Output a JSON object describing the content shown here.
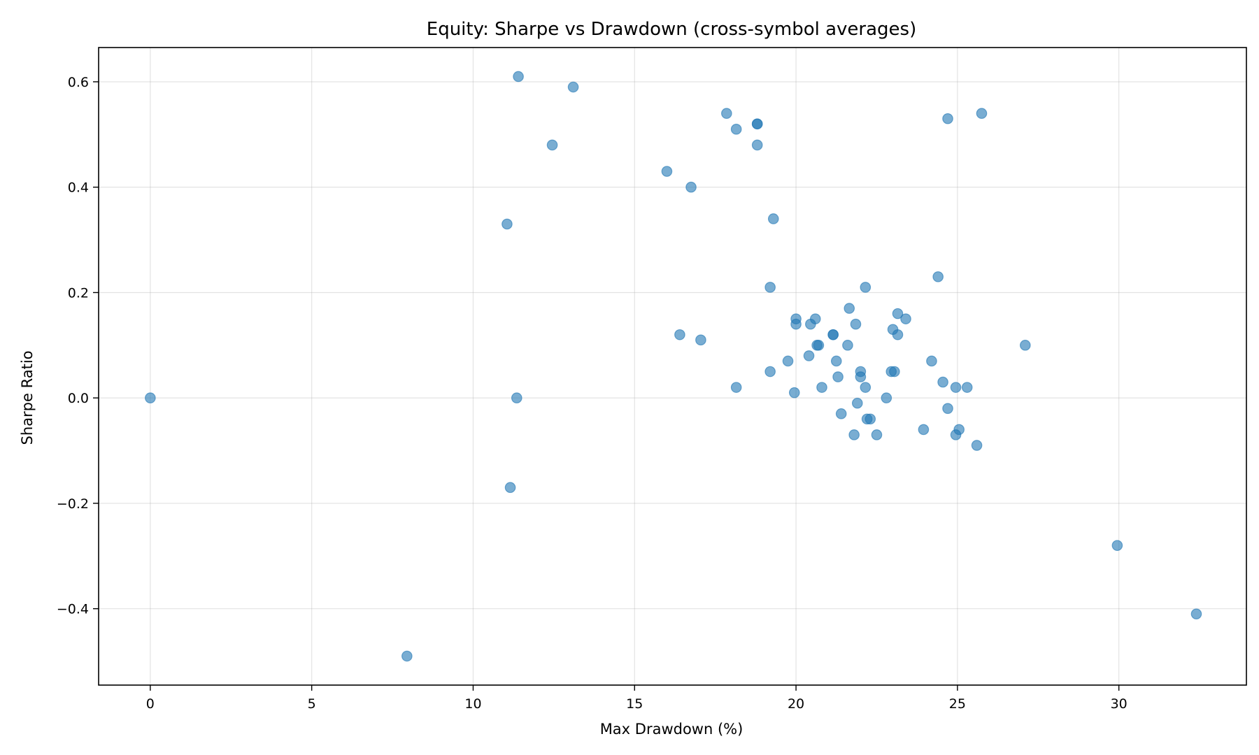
{
  "chart_data": {
    "type": "scatter",
    "title": "Equity: Sharpe vs Drawdown (cross-symbol averages)",
    "xlabel": "Max Drawdown (%)",
    "ylabel": "Sharpe Ratio",
    "xlim": [
      -1.6,
      33.95
    ],
    "ylim": [
      -0.545,
      0.665
    ],
    "xticks": [
      0,
      5,
      10,
      15,
      20,
      25,
      30
    ],
    "yticks": [
      -0.4,
      -0.2,
      0.0,
      0.2,
      0.4,
      0.6
    ],
    "xtick_labels": [
      "0",
      "5",
      "10",
      "15",
      "20",
      "25",
      "30"
    ],
    "ytick_labels": [
      "−0.4",
      "−0.2",
      "0.0",
      "0.2",
      "0.4",
      "0.6"
    ],
    "grid": true,
    "point_color": "#1f77b4",
    "points": [
      {
        "x": 0.0,
        "y": 0.0
      },
      {
        "x": 7.95,
        "y": -0.49
      },
      {
        "x": 11.05,
        "y": 0.33
      },
      {
        "x": 11.15,
        "y": -0.17
      },
      {
        "x": 11.35,
        "y": 0.0
      },
      {
        "x": 11.4,
        "y": 0.61
      },
      {
        "x": 12.45,
        "y": 0.48
      },
      {
        "x": 13.1,
        "y": 0.59
      },
      {
        "x": 16.0,
        "y": 0.43
      },
      {
        "x": 16.4,
        "y": 0.12
      },
      {
        "x": 16.75,
        "y": 0.4
      },
      {
        "x": 17.05,
        "y": 0.11
      },
      {
        "x": 17.85,
        "y": 0.54
      },
      {
        "x": 18.15,
        "y": 0.51
      },
      {
        "x": 18.15,
        "y": 0.02
      },
      {
        "x": 18.8,
        "y": 0.52
      },
      {
        "x": 18.8,
        "y": 0.52
      },
      {
        "x": 18.8,
        "y": 0.48
      },
      {
        "x": 19.2,
        "y": 0.21
      },
      {
        "x": 19.2,
        "y": 0.05
      },
      {
        "x": 19.3,
        "y": 0.34
      },
      {
        "x": 19.75,
        "y": 0.07
      },
      {
        "x": 19.95,
        "y": 0.01
      },
      {
        "x": 20.0,
        "y": 0.15
      },
      {
        "x": 20.0,
        "y": 0.14
      },
      {
        "x": 20.4,
        "y": 0.08
      },
      {
        "x": 20.45,
        "y": 0.14
      },
      {
        "x": 20.6,
        "y": 0.15
      },
      {
        "x": 20.65,
        "y": 0.1
      },
      {
        "x": 20.7,
        "y": 0.1
      },
      {
        "x": 20.8,
        "y": 0.02
      },
      {
        "x": 21.15,
        "y": 0.12
      },
      {
        "x": 21.15,
        "y": 0.12
      },
      {
        "x": 21.25,
        "y": 0.07
      },
      {
        "x": 21.3,
        "y": 0.04
      },
      {
        "x": 21.4,
        "y": -0.03
      },
      {
        "x": 21.6,
        "y": 0.1
      },
      {
        "x": 21.65,
        "y": 0.17
      },
      {
        "x": 21.8,
        "y": -0.07
      },
      {
        "x": 21.85,
        "y": 0.14
      },
      {
        "x": 21.9,
        "y": -0.01
      },
      {
        "x": 22.0,
        "y": 0.05
      },
      {
        "x": 22.0,
        "y": 0.04
      },
      {
        "x": 22.15,
        "y": 0.21
      },
      {
        "x": 22.15,
        "y": 0.02
      },
      {
        "x": 22.2,
        "y": -0.04
      },
      {
        "x": 22.3,
        "y": -0.04
      },
      {
        "x": 22.5,
        "y": -0.07
      },
      {
        "x": 22.8,
        "y": 0.0
      },
      {
        "x": 22.95,
        "y": 0.05
      },
      {
        "x": 23.0,
        "y": 0.13
      },
      {
        "x": 23.05,
        "y": 0.05
      },
      {
        "x": 23.15,
        "y": 0.16
      },
      {
        "x": 23.15,
        "y": 0.12
      },
      {
        "x": 23.4,
        "y": 0.15
      },
      {
        "x": 23.95,
        "y": -0.06
      },
      {
        "x": 24.2,
        "y": 0.07
      },
      {
        "x": 24.4,
        "y": 0.23
      },
      {
        "x": 24.55,
        "y": 0.03
      },
      {
        "x": 24.7,
        "y": 0.53
      },
      {
        "x": 24.7,
        "y": -0.02
      },
      {
        "x": 24.95,
        "y": 0.02
      },
      {
        "x": 24.95,
        "y": -0.07
      },
      {
        "x": 25.05,
        "y": -0.06
      },
      {
        "x": 25.3,
        "y": 0.02
      },
      {
        "x": 25.6,
        "y": -0.09
      },
      {
        "x": 25.75,
        "y": 0.54
      },
      {
        "x": 27.1,
        "y": 0.1
      },
      {
        "x": 29.95,
        "y": -0.28
      },
      {
        "x": 32.4,
        "y": -0.41
      }
    ]
  }
}
